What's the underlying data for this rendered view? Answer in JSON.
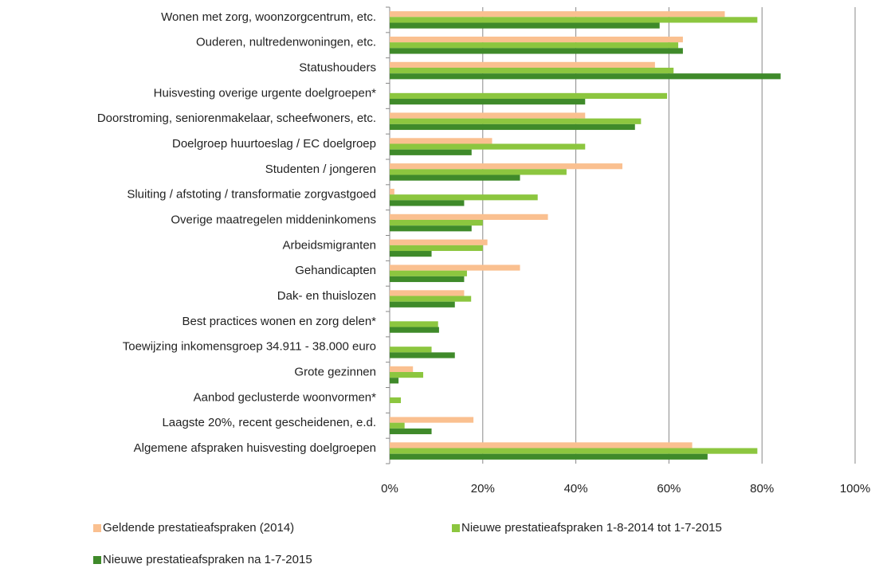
{
  "chart_data": {
    "type": "hbar",
    "categories": [
      "Wonen met zorg, woonzorgcentrum, etc.",
      "Ouderen, nultredenwoningen, etc.",
      "Statushouders",
      "Huisvesting overige urgente doelgroepen*",
      "Doorstroming, seniorenmakelaar, scheefwoners, etc.",
      "Doelgroep huurtoeslag / EC doelgroep",
      "Studenten / jongeren",
      "Sluiting / afstoting / transformatie zorgvastgoed",
      "Overige maatregelen middeninkomens",
      "Arbeidsmigranten",
      "Gehandicapten",
      "Dak- en thuislozen",
      "Best practices wonen en zorg delen*",
      "Toewijzing inkomensgroep 34.911 - 38.000 euro",
      "Grote gezinnen",
      "Aanbod geclusterde woonvormen*",
      "Laagste 20%, recent gescheidenen, e.d.",
      "Algemene afspraken huisvesting doelgroepen"
    ],
    "series": [
      {
        "name": "Geldende prestatieafspraken (2014)",
        "color": "#fac090",
        "values": [
          72,
          63,
          57,
          0,
          42,
          22,
          50,
          1,
          34,
          21,
          28,
          16,
          0,
          0,
          5,
          0,
          18,
          65
        ]
      },
      {
        "name": "Nieuwe prestatieafspraken 1-8-2014 tot 1-7-2015",
        "color": "#8cc63f",
        "values": [
          79,
          62,
          61,
          59.6,
          54,
          42,
          38,
          31.8,
          20,
          20,
          16.6,
          17.5,
          10.4,
          9,
          7.2,
          2.4,
          3.2,
          79
        ]
      },
      {
        "name": "Nieuwe prestatieafspraken na 1-7-2015",
        "color": "#3f8a2a",
        "values": [
          58,
          63,
          84,
          42,
          52.7,
          17.6,
          28,
          16,
          17.6,
          9,
          16,
          14,
          10.6,
          14,
          1.9,
          0,
          9,
          68.3
        ]
      }
    ],
    "xlim": [
      0,
      100
    ],
    "xticks": [
      {
        "value": 0,
        "label": "0%"
      },
      {
        "value": 20,
        "label": "20%"
      },
      {
        "value": 40,
        "label": "40%"
      },
      {
        "value": 60,
        "label": "60%"
      },
      {
        "value": 80,
        "label": "80%"
      },
      {
        "value": 100,
        "label": "100%"
      }
    ],
    "grid": true,
    "legend": "bottom"
  }
}
